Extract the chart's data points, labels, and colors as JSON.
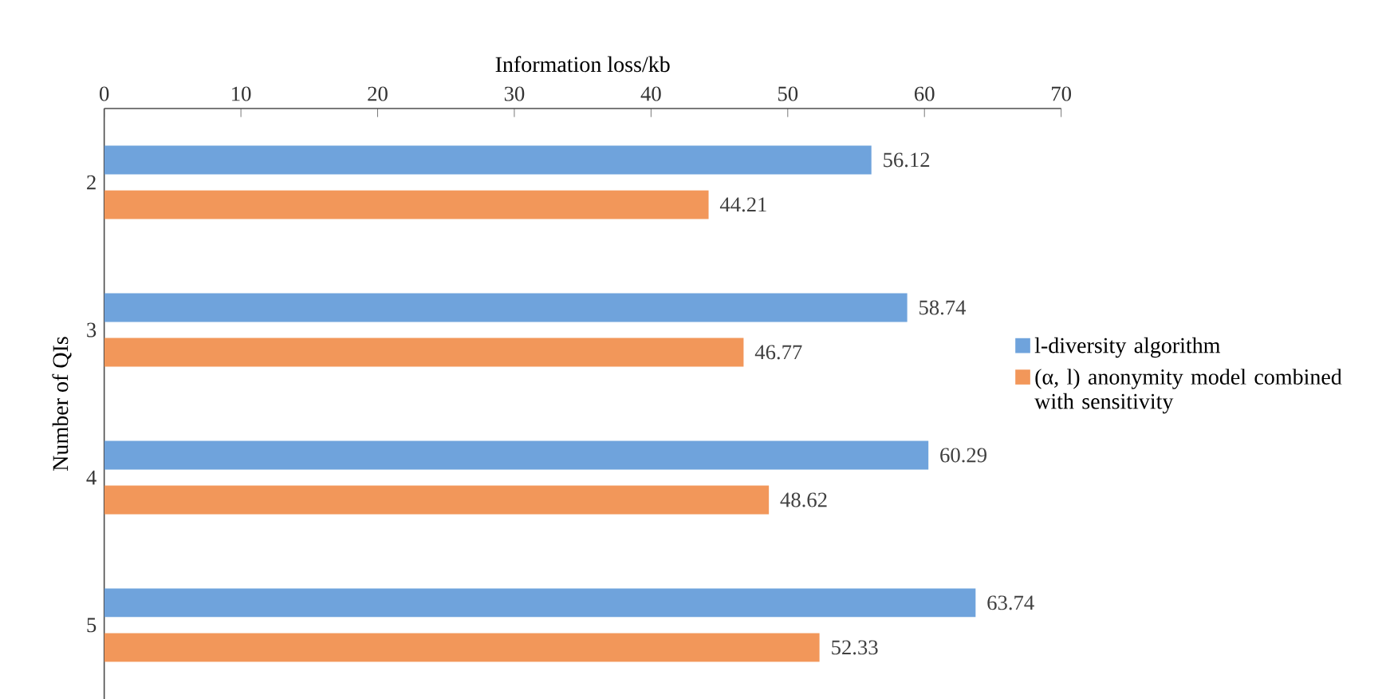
{
  "chart_data": {
    "type": "bar",
    "orientation": "horizontal",
    "xlabel": "Information loss/kb",
    "ylabel": "Number of QIs",
    "categories": [
      "2",
      "3",
      "4",
      "5"
    ],
    "series": [
      {
        "name": "l-diversity algorithm",
        "color": "#6fa3dc",
        "values": [
          56.12,
          58.74,
          60.29,
          63.74
        ]
      },
      {
        "name": "(α, l) anonymity model combined with sensitivity",
        "color": "#f2975a",
        "values": [
          44.21,
          46.77,
          48.62,
          52.33
        ]
      }
    ],
    "xlim": [
      0,
      70
    ],
    "xticks": [
      0,
      10,
      20,
      30,
      40,
      50,
      60,
      70
    ],
    "data_labels": true,
    "legend": "right",
    "grid": false
  }
}
